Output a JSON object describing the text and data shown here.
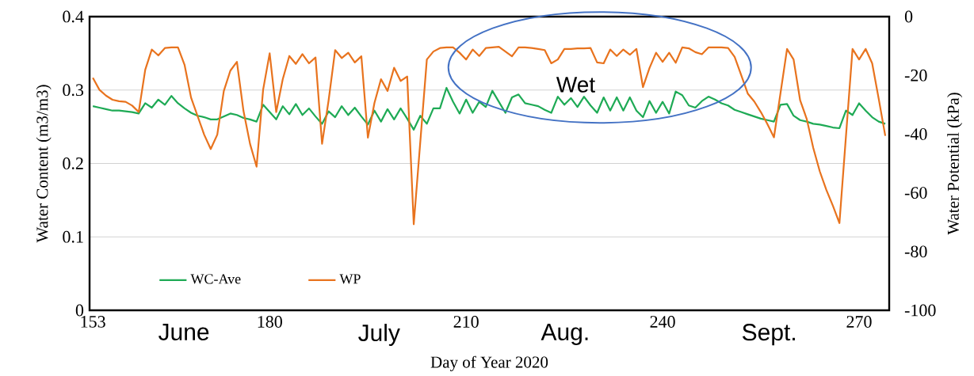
{
  "chart_data": {
    "type": "line",
    "xlabel": "Day of Year 2020",
    "ylabel": "Water Content (m3/m3)",
    "y2label": "Water Potential (kPa)",
    "annotations": [
      "June",
      "July",
      "Aug.",
      "Sept.",
      "Wet"
    ],
    "xlim": [
      152.5,
      274.6
    ],
    "xticks": [
      153,
      180,
      210,
      240,
      270
    ],
    "ylim": [
      0,
      0.4
    ],
    "yticks": [
      0,
      0.1,
      0.2,
      0.3,
      0.4
    ],
    "y2lim": [
      -100,
      0
    ],
    "y2ticks": [
      -100,
      -80,
      -60,
      -40,
      -20,
      0
    ],
    "grid": "y",
    "legend": "bottom left",
    "series": [
      {
        "name": "WC-Ave",
        "color": "#1eaa55",
        "x": [
          153,
          154,
          155,
          156,
          157,
          158,
          159,
          160,
          161,
          162,
          163,
          164,
          165,
          166,
          167,
          168,
          169,
          170,
          171,
          172,
          173,
          174,
          175,
          176,
          177,
          178,
          179,
          180,
          181,
          182,
          183,
          184,
          185,
          186,
          187,
          188,
          189,
          190,
          191,
          192,
          193,
          194,
          195,
          196,
          197,
          198,
          199,
          200,
          201,
          202,
          203,
          204,
          205,
          206,
          207,
          208,
          209,
          210,
          211,
          212,
          213,
          214,
          215,
          216,
          217,
          218,
          219,
          220,
          221,
          222,
          223,
          224,
          225,
          226,
          227,
          228,
          229,
          230,
          231,
          232,
          233,
          234,
          235,
          236,
          237,
          238,
          239,
          240,
          241,
          242,
          243,
          244,
          245,
          246,
          247,
          248,
          249,
          250,
          251,
          252,
          253,
          254,
          255,
          256,
          257,
          258,
          259,
          260,
          261,
          262,
          263,
          264,
          265,
          266,
          267,
          268,
          269,
          270,
          271,
          272,
          273,
          274
        ],
        "values": [
          0.278,
          0.276,
          0.274,
          0.272,
          0.272,
          0.271,
          0.27,
          0.268,
          0.282,
          0.276,
          0.287,
          0.28,
          0.292,
          0.282,
          0.275,
          0.269,
          0.265,
          0.263,
          0.26,
          0.26,
          0.264,
          0.268,
          0.266,
          0.262,
          0.26,
          0.257,
          0.28,
          0.27,
          0.26,
          0.278,
          0.267,
          0.281,
          0.266,
          0.275,
          0.264,
          0.254,
          0.271,
          0.263,
          0.278,
          0.266,
          0.276,
          0.264,
          0.253,
          0.272,
          0.257,
          0.274,
          0.26,
          0.275,
          0.261,
          0.246,
          0.265,
          0.254,
          0.275,
          0.275,
          0.303,
          0.284,
          0.268,
          0.287,
          0.269,
          0.284,
          0.277,
          0.299,
          0.284,
          0.269,
          0.29,
          0.294,
          0.282,
          0.28,
          0.278,
          0.273,
          0.269,
          0.291,
          0.28,
          0.289,
          0.277,
          0.291,
          0.279,
          0.269,
          0.29,
          0.272,
          0.29,
          0.272,
          0.29,
          0.272,
          0.263,
          0.285,
          0.269,
          0.284,
          0.268,
          0.298,
          0.293,
          0.279,
          0.276,
          0.285,
          0.291,
          0.287,
          0.282,
          0.279,
          0.273,
          0.27,
          0.267,
          0.264,
          0.261,
          0.259,
          0.257,
          0.28,
          0.281,
          0.265,
          0.259,
          0.257,
          0.254,
          0.253,
          0.251,
          0.249,
          0.248,
          0.272,
          0.266,
          0.282,
          0.272,
          0.263,
          0.257,
          0.254
        ]
      },
      {
        "name": "WP",
        "color": "#e8731e",
        "axis": "y2",
        "x": [
          153,
          154,
          155,
          156,
          157,
          158,
          159,
          160,
          161,
          162,
          163,
          164,
          165,
          166,
          167,
          168,
          169,
          170,
          171,
          172,
          173,
          174,
          175,
          176,
          177,
          178,
          179,
          180,
          181,
          182,
          183,
          184,
          185,
          186,
          187,
          188,
          189,
          190,
          191,
          192,
          193,
          194,
          195,
          196,
          197,
          198,
          199,
          200,
          201,
          202,
          204,
          205,
          206,
          207,
          208,
          209,
          210,
          211,
          212,
          213,
          214,
          215,
          216,
          217,
          218,
          219,
          220,
          221,
          222,
          223,
          224,
          225,
          226,
          227,
          228,
          229,
          230,
          231,
          232,
          233,
          234,
          235,
          236,
          237,
          238,
          239,
          240,
          241,
          242,
          243,
          244,
          245,
          246,
          247,
          248,
          249,
          250,
          251,
          252,
          253,
          254,
          255,
          256,
          257,
          259,
          260,
          261,
          262,
          263,
          264,
          265,
          266,
          267,
          268,
          269,
          270,
          271,
          272,
          273,
          274
        ],
        "values": [
          -20.8,
          -24.9,
          -26.9,
          -28.3,
          -28.8,
          -29.0,
          -30.3,
          -32.5,
          -18.1,
          -11.2,
          -13.2,
          -10.7,
          -10.5,
          -10.5,
          -16.4,
          -27.6,
          -33.9,
          -40.2,
          -45.1,
          -40.2,
          -25.3,
          -18.4,
          -15.4,
          -32.1,
          -43.3,
          -51.1,
          -24.9,
          -12.5,
          -32.5,
          -21.3,
          -13.4,
          -16.1,
          -12.8,
          -15.9,
          -13.9,
          -43.3,
          -28.5,
          -11.4,
          -14.1,
          -12.3,
          -15.6,
          -13.5,
          -41.2,
          -29.4,
          -21.3,
          -25.3,
          -17.4,
          -21.9,
          -20.4,
          -70.7,
          -14.6,
          -11.9,
          -10.7,
          -10.5,
          -10.5,
          -12.3,
          -14.6,
          -11.2,
          -13.4,
          -10.7,
          -10.5,
          -10.3,
          -11.9,
          -13.5,
          -10.5,
          -10.5,
          -10.7,
          -11.0,
          -11.4,
          -15.9,
          -14.6,
          -11.0,
          -11.0,
          -10.8,
          -10.8,
          -10.7,
          -15.6,
          -15.9,
          -11.2,
          -13.4,
          -11.2,
          -13.0,
          -11.0,
          -24.0,
          -17.5,
          -12.3,
          -15.4,
          -12.3,
          -15.7,
          -10.5,
          -10.8,
          -12.1,
          -12.8,
          -10.5,
          -10.5,
          -10.5,
          -10.7,
          -13.7,
          -19.9,
          -26.2,
          -28.9,
          -32.5,
          -36.6,
          -41.1,
          -11.0,
          -14.6,
          -28.5,
          -34.8,
          -44.7,
          -52.7,
          -59.0,
          -64.4,
          -70.3,
          -40.6,
          -11.0,
          -14.6,
          -11.0,
          -15.9,
          -28.0,
          -40.6
        ]
      }
    ]
  }
}
